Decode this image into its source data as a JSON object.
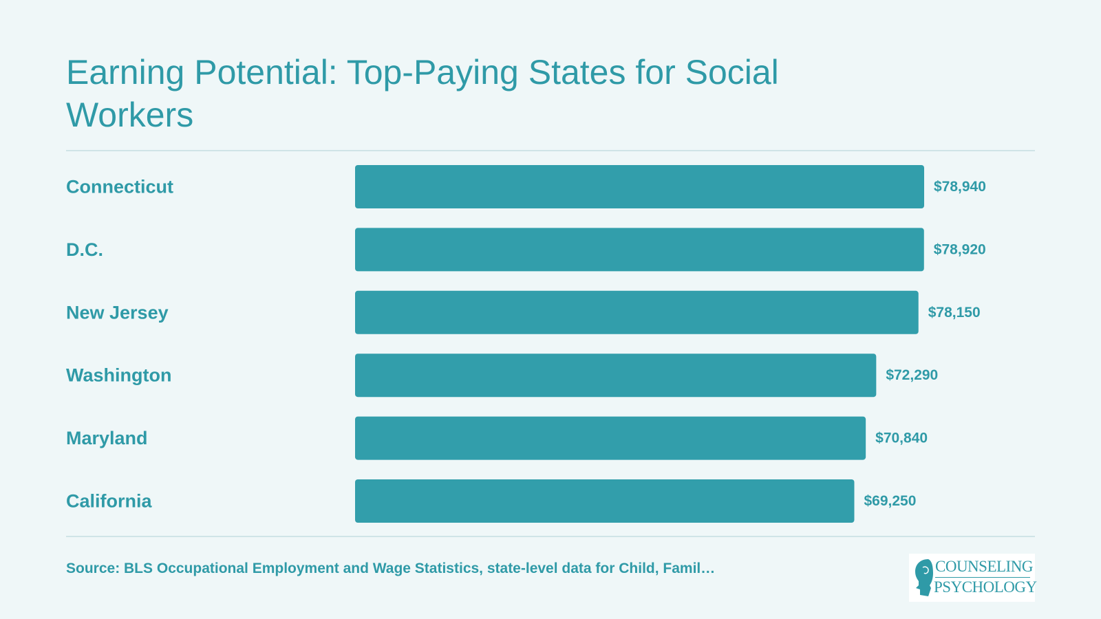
{
  "title": "Earning Potential: Top-Paying States for Social Workers",
  "source": "Source: BLS Occupational Employment and Wage Statistics, state-level data for Child, Famil…",
  "logo": {
    "line1": "COUNSELING",
    "line2": "PSYCHOLOGY"
  },
  "colors": {
    "bar": "#329eab",
    "text": "#2f9aa7",
    "background": "#eff7f8"
  },
  "chart_data": {
    "type": "bar",
    "orientation": "horizontal",
    "title": "Earning Potential: Top-Paying States for Social Workers",
    "categories": [
      "Connecticut",
      "D.C.",
      "New Jersey",
      "Washington",
      "Maryland",
      "California"
    ],
    "values": [
      78940,
      78920,
      78150,
      72290,
      70840,
      69250
    ],
    "value_labels": [
      "$78,940",
      "$78,920",
      "$78,150",
      "$72,290",
      "$70,840",
      "$69,250"
    ],
    "xlabel": "",
    "ylabel": "",
    "xlim": [
      0,
      78940
    ],
    "grid": false,
    "legend": "none"
  }
}
